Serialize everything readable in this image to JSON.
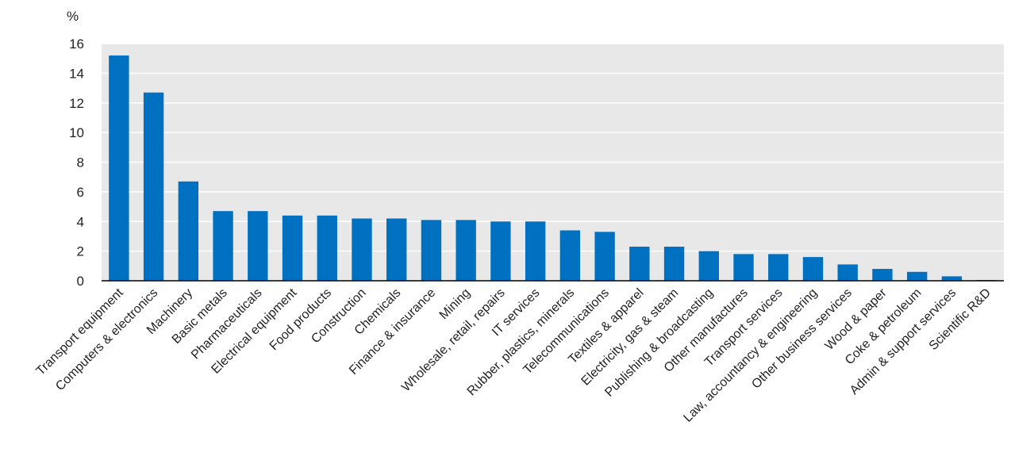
{
  "chart_data": {
    "type": "bar",
    "ylabel": "%",
    "ylim": [
      0,
      16
    ],
    "yticks": [
      0,
      2,
      4,
      6,
      8,
      10,
      12,
      14,
      16
    ],
    "grid": true,
    "bar_color": "#0070c0",
    "plot_background": "#e8e8e8",
    "categories": [
      "Transport equipment",
      "Computers & electronics",
      "Machinery",
      "Basic metals",
      "Pharmaceuticals",
      "Electrical equipment",
      "Food products",
      "Construction",
      "Chemicals",
      "Finance & insurance",
      "Mining",
      "Wholesale, retail, repairs",
      "IT services",
      "Rubber, plastics, minerals",
      "Telecommunications",
      "Textiles & apparel",
      "Electricity, gas & steam",
      "Publishing & broadcasting",
      "Other manufactures",
      "Transport services",
      "Law, accountancy & engineering",
      "Other business services",
      "Wood & paper",
      "Coke & petroleum",
      "Admin & support services",
      "Scientific R&D"
    ],
    "values": [
      15.2,
      12.7,
      6.7,
      4.7,
      4.7,
      4.4,
      4.4,
      4.2,
      4.2,
      4.1,
      4.1,
      4.0,
      4.0,
      3.4,
      3.3,
      2.3,
      2.3,
      2.0,
      1.8,
      1.8,
      1.6,
      1.1,
      0.8,
      0.6,
      0.3,
      0.05
    ]
  }
}
